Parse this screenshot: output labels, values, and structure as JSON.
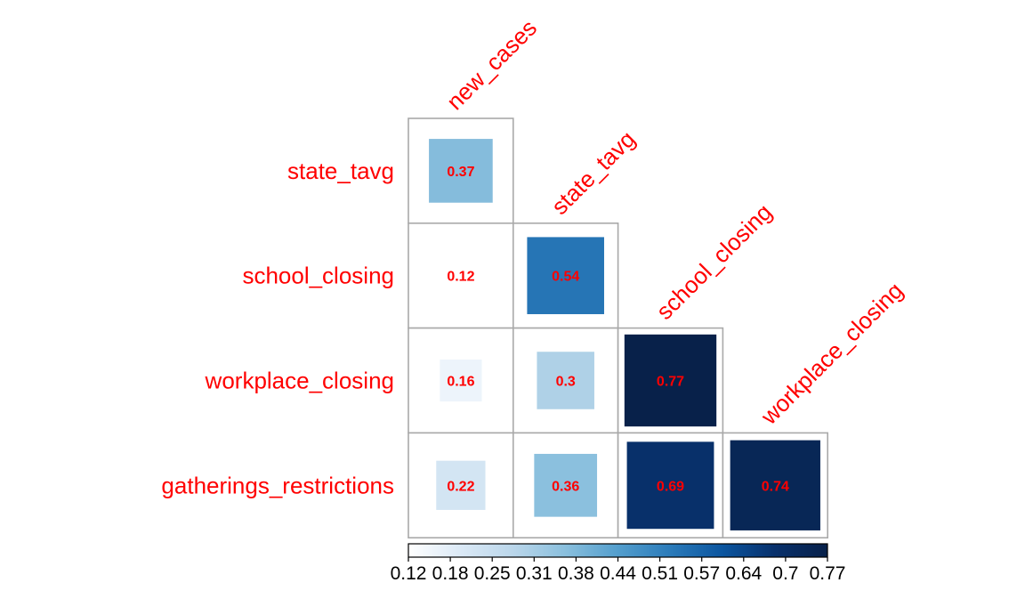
{
  "chart_data": {
    "type": "heatmap",
    "variables": [
      "new_cases",
      "state_tavg",
      "school_closing",
      "workplace_closing",
      "gatherings_restrictions"
    ],
    "rows": [
      "state_tavg",
      "school_closing",
      "workplace_closing",
      "gatherings_restrictions"
    ],
    "columns": [
      "new_cases",
      "state_tavg",
      "school_closing",
      "workplace_closing"
    ],
    "cells": [
      {
        "row": "state_tavg",
        "col": "new_cases",
        "value": 0.37,
        "label": "0.37"
      },
      {
        "row": "school_closing",
        "col": "new_cases",
        "value": 0.12,
        "label": "0.12"
      },
      {
        "row": "school_closing",
        "col": "state_tavg",
        "value": 0.54,
        "label": "0.54"
      },
      {
        "row": "workplace_closing",
        "col": "new_cases",
        "value": 0.16,
        "label": "0.16"
      },
      {
        "row": "workplace_closing",
        "col": "state_tavg",
        "value": 0.3,
        "label": "0.3"
      },
      {
        "row": "workplace_closing",
        "col": "school_closing",
        "value": 0.77,
        "label": "0.77"
      },
      {
        "row": "gatherings_restrictions",
        "col": "new_cases",
        "value": 0.22,
        "label": "0.22"
      },
      {
        "row": "gatherings_restrictions",
        "col": "state_tavg",
        "value": 0.36,
        "label": "0.36"
      },
      {
        "row": "gatherings_restrictions",
        "col": "school_closing",
        "value": 0.69,
        "label": "0.69"
      },
      {
        "row": "gatherings_restrictions",
        "col": "workplace_closing",
        "value": 0.74,
        "label": "0.74"
      }
    ],
    "color_range": [
      0.12,
      0.77
    ],
    "colorbar_ticks": [
      "0.12",
      "0.18",
      "0.25",
      "0.31",
      "0.38",
      "0.44",
      "0.51",
      "0.57",
      "0.64",
      "0.7",
      "0.77"
    ],
    "colors": {
      "low": "#ffffff",
      "high": "#08214a",
      "label": "#ff0000",
      "grid": "#a9a9a9",
      "stops": [
        "#ffffff",
        "#dbe9f6",
        "#bad6ea",
        "#89bfdd",
        "#539ecd",
        "#2b7bba",
        "#0b559f",
        "#08306b",
        "#08214a"
      ]
    }
  }
}
